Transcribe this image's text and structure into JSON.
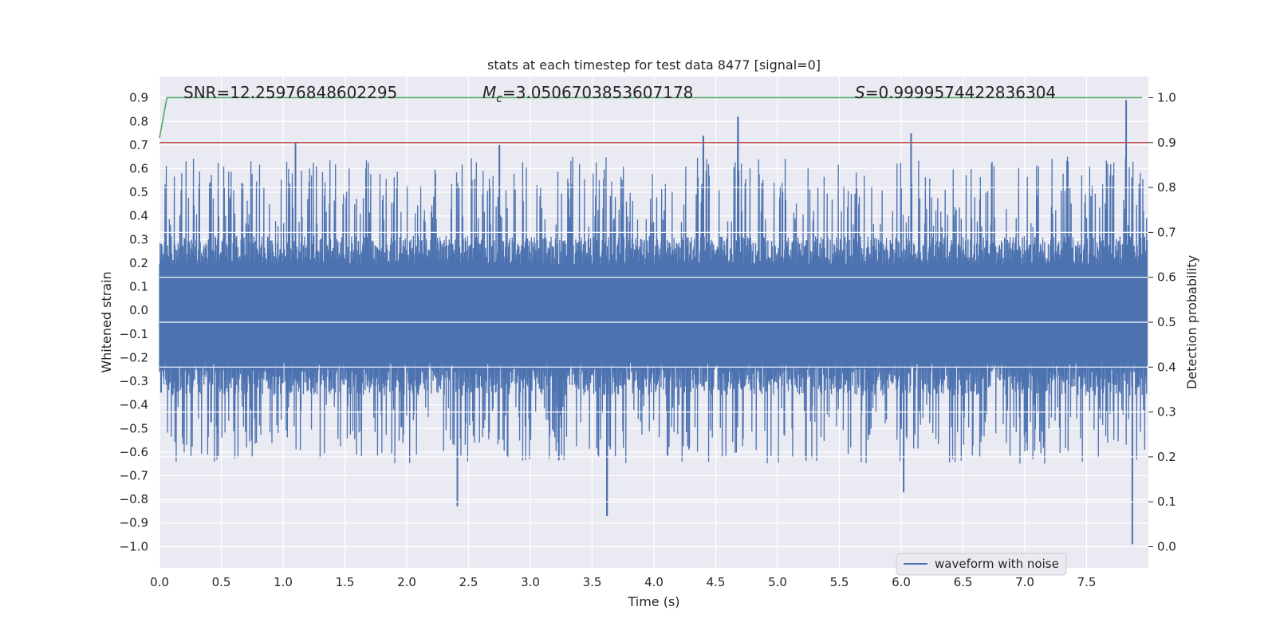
{
  "chart_data": {
    "type": "line",
    "title": "stats at each timestep for test data 8477 [signal=0]",
    "xlabel": "Time (s)",
    "ylabel": "Whitened strain",
    "y2label": "Detection probability",
    "xlim": [
      0.0,
      8.0
    ],
    "ylim": [
      -1.09,
      0.99
    ],
    "y2lim": [
      -0.047,
      1.047
    ],
    "xticks": [
      "0.0",
      "0.5",
      "1.0",
      "1.5",
      "2.0",
      "2.5",
      "3.0",
      "3.5",
      "4.0",
      "4.5",
      "5.0",
      "5.5",
      "6.0",
      "6.5",
      "7.0",
      "7.5"
    ],
    "xtick_values": [
      0.0,
      0.5,
      1.0,
      1.5,
      2.0,
      2.5,
      3.0,
      3.5,
      4.0,
      4.5,
      5.0,
      5.5,
      6.0,
      6.5,
      7.0,
      7.5
    ],
    "yticks": [
      "0.9",
      "0.8",
      "0.7",
      "0.6",
      "0.5",
      "0.4",
      "0.3",
      "0.2",
      "0.1",
      "0.0",
      "−0.1",
      "−0.2",
      "−0.3",
      "−0.4",
      "−0.5",
      "−0.6",
      "−0.7",
      "−0.8",
      "−0.9",
      "−1.0"
    ],
    "ytick_values": [
      0.9,
      0.8,
      0.7,
      0.6,
      0.5,
      0.4,
      0.3,
      0.2,
      0.1,
      0.0,
      -0.1,
      -0.2,
      -0.3,
      -0.4,
      -0.5,
      -0.6,
      -0.7,
      -0.8,
      -0.9,
      -1.0
    ],
    "y2ticks": [
      "1.0",
      "0.9",
      "0.8",
      "0.7",
      "0.6",
      "0.5",
      "0.4",
      "0.3",
      "0.2",
      "0.1",
      "0.0"
    ],
    "y2tick_values": [
      1.0,
      0.9,
      0.8,
      0.7,
      0.6,
      0.5,
      0.4,
      0.3,
      0.2,
      0.1,
      0.0
    ],
    "grid": true,
    "legend_placement": "lower-right",
    "series": [
      {
        "name": "waveform with noise",
        "color": "#4c72b0",
        "axis": "left",
        "envelope_summary": {
          "typical_upper": 0.35,
          "typical_lower": -0.4,
          "peaks_positive": [
            [
              1.1,
              0.71
            ],
            [
              2.75,
              0.7
            ],
            [
              4.4,
              0.74
            ],
            [
              4.68,
              0.82
            ],
            [
              6.08,
              0.75
            ],
            [
              7.82,
              0.89
            ]
          ],
          "peaks_negative": [
            [
              2.41,
              -0.83
            ],
            [
              3.62,
              -0.87
            ],
            [
              6.02,
              -0.77
            ],
            [
              7.87,
              -0.99
            ]
          ]
        }
      },
      {
        "name": "",
        "color": "#55a868",
        "axis": "right",
        "x": [
          0.0,
          0.06,
          7.95
        ],
        "y": [
          0.91,
          1.0,
          1.0
        ]
      },
      {
        "name": "",
        "color": "#c44e52",
        "axis": "right",
        "x": [
          0.0,
          8.0
        ],
        "y": [
          0.9,
          0.9
        ]
      }
    ],
    "annotations": [
      {
        "text": "SNR=12.25976848602295",
        "italic_prefix": "",
        "subscript": "",
        "suffix": ""
      },
      {
        "text": "",
        "italic_prefix": "M",
        "subscript": "c",
        "suffix": "=3.0506703853607178"
      },
      {
        "text": "",
        "italic_prefix": "S",
        "subscript": "",
        "suffix": "=0.9999574422836304"
      }
    ],
    "colors": {
      "background": "#eaeaf2",
      "grid": "#ffffff",
      "waveform": "#4c72b0",
      "probability": "#55a868",
      "threshold": "#c44e52"
    }
  }
}
